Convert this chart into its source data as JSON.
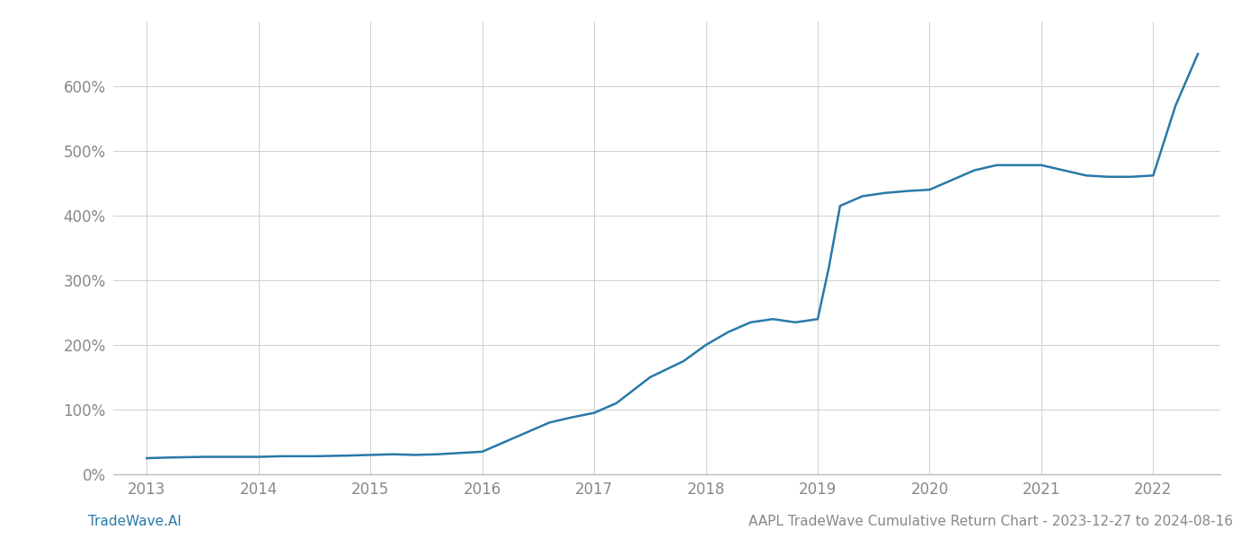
{
  "title": "AAPL TradeWave Cumulative Return Chart - 2023-12-27 to 2024-08-16",
  "watermark": "TradeWave.AI",
  "line_color": "#2979A8",
  "background_color": "#ffffff",
  "grid_color": "#d0d0d0",
  "x_years": [
    2013,
    2014,
    2015,
    2016,
    2017,
    2018,
    2019,
    2020,
    2021,
    2022
  ],
  "x_values": [
    2013.0,
    2013.2,
    2013.5,
    2013.8,
    2014.0,
    2014.2,
    2014.5,
    2014.8,
    2015.0,
    2015.2,
    2015.4,
    2015.6,
    2015.8,
    2016.0,
    2016.2,
    2016.4,
    2016.6,
    2016.8,
    2017.0,
    2017.2,
    2017.5,
    2017.8,
    2018.0,
    2018.2,
    2018.4,
    2018.6,
    2018.8,
    2019.0,
    2019.1,
    2019.2,
    2019.4,
    2019.6,
    2019.8,
    2020.0,
    2020.2,
    2020.4,
    2020.6,
    2020.8,
    2021.0,
    2021.2,
    2021.4,
    2021.6,
    2021.8,
    2022.0,
    2022.2,
    2022.4
  ],
  "y_values": [
    25,
    26,
    27,
    27,
    27,
    28,
    28,
    29,
    30,
    31,
    30,
    31,
    33,
    35,
    50,
    65,
    80,
    88,
    95,
    110,
    150,
    175,
    200,
    220,
    235,
    240,
    235,
    240,
    320,
    415,
    430,
    435,
    438,
    440,
    455,
    470,
    478,
    478,
    478,
    470,
    462,
    460,
    460,
    462,
    570,
    650
  ],
  "ylim": [
    0,
    700
  ],
  "xlim": [
    2012.7,
    2022.6
  ],
  "yticks": [
    0,
    100,
    200,
    300,
    400,
    500,
    600
  ],
  "ytick_labels": [
    "0%",
    "100%",
    "200%",
    "300%",
    "400%",
    "500%",
    "600%"
  ],
  "title_fontsize": 11,
  "watermark_fontsize": 11,
  "tick_color": "#888888",
  "spine_color": "#bbbbbb"
}
